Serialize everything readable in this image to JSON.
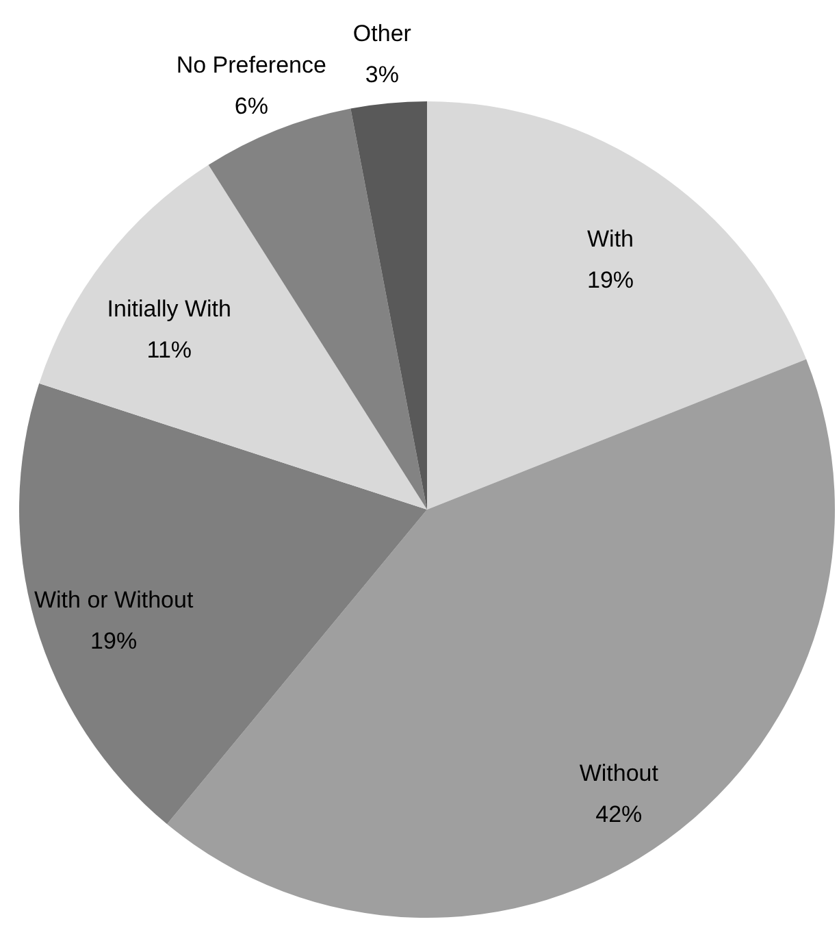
{
  "chart_data": {
    "type": "pie",
    "categories": [
      "With",
      "Without",
      "With or Without",
      "Initially With",
      "No Preference",
      "Other"
    ],
    "values": [
      19,
      42,
      19,
      11,
      6,
      3
    ],
    "colors": [
      "#d9d9d9",
      "#9f9f9f",
      "#7f7f7f",
      "#d9d9d9",
      "#838383",
      "#595959"
    ],
    "value_labels": [
      "19%",
      "42%",
      "19%",
      "11%",
      "6%",
      "3%"
    ]
  }
}
